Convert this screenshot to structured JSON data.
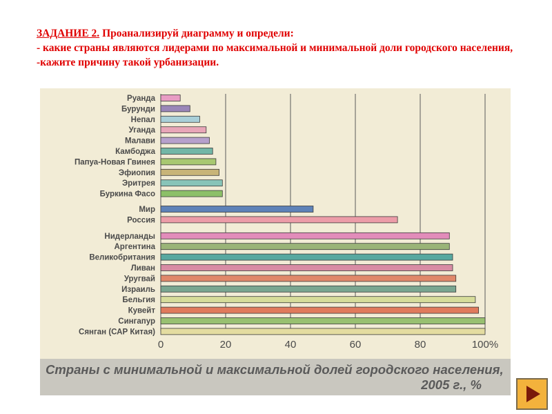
{
  "task": {
    "lead": "ЗАДАНИЕ 2.",
    "lead_rest": " Проанализируй диаграмму и определи:",
    "line2": "- какие страны являются лидерами по максимальной и минимальной доли городского населения,",
    "line3": "-кажите причину такой урбанизации."
  },
  "chart_data": {
    "type": "bar",
    "orientation": "horizontal",
    "title": "Страны с минимальной и максимальной долей городского населения,",
    "title_line2": "2005 г., %",
    "categories": [
      "Руанда",
      "Бурунди",
      "Непал",
      "Уганда",
      "Малави",
      "Камбоджа",
      "Папуа-Новая Гвинея",
      "Эфиопия",
      "Эритрея",
      "Буркина Фасо",
      "Мир",
      "Россия",
      "Нидерланды",
      "Аргентина",
      "Великобритания",
      "Ливан",
      "Уругвай",
      "Израиль",
      "Бельгия",
      "Кувейт",
      "Сингапур",
      "Сянган (САР Китая)"
    ],
    "values": [
      6,
      9,
      12,
      14,
      15,
      16,
      17,
      18,
      19,
      19,
      47,
      73,
      89,
      89,
      90,
      90,
      91,
      91,
      97,
      98,
      100,
      100
    ],
    "colors": [
      "#e89cc4",
      "#9a86b8",
      "#a8cfd8",
      "#e8a6b8",
      "#b6a0cc",
      "#72b6a6",
      "#a8c870",
      "#c8b478",
      "#88c4b8",
      "#8cc068",
      "#5e82b8",
      "#ec9ca8",
      "#e28cba",
      "#9ab478",
      "#58a8a0",
      "#d88ca4",
      "#e0886a",
      "#7aa690",
      "#d6dc9a",
      "#e07a5c",
      "#98c070",
      "#e4dca0"
    ],
    "x_ticks": [
      "0",
      "20",
      "40",
      "60",
      "80",
      "100%"
    ],
    "xlim": [
      0,
      100
    ],
    "grid": true
  },
  "nav": {
    "next_icon": "play-arrow-icon"
  }
}
